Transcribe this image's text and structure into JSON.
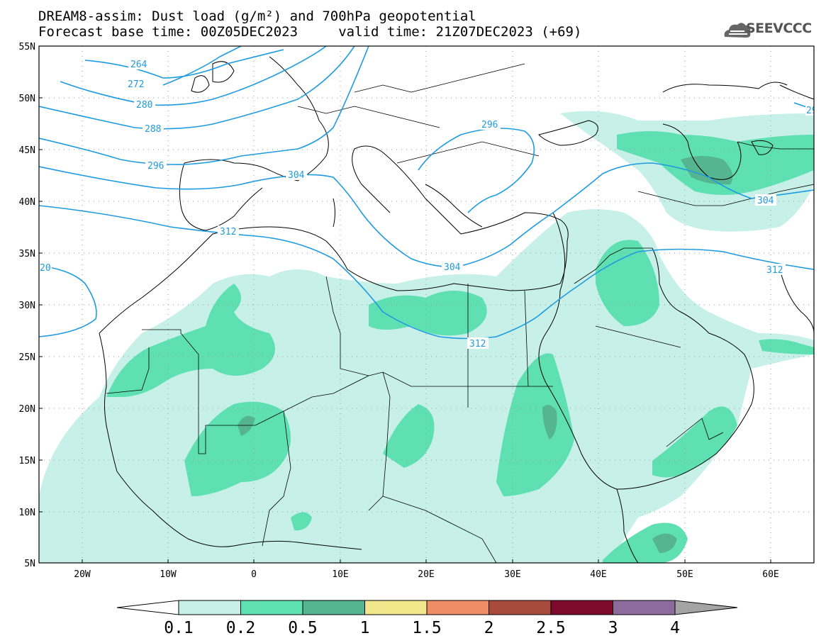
{
  "title": {
    "line1": "DREAM8-assim: Dust load (g/m²) and 700hPa geopotential",
    "line2": "Forecast base time: 00Z05DEC2023     valid time: 21Z07DEC2023 (+69)"
  },
  "logo": {
    "text": "SEEVCCC",
    "icon": "cloud-icon"
  },
  "map": {
    "lat_labels": [
      "55N",
      "50N",
      "45N",
      "40N",
      "35N",
      "30N",
      "25N",
      "20N",
      "15N",
      "10N",
      "5N"
    ],
    "lon_labels": [
      "20W",
      "10W",
      "0",
      "10E",
      "20E",
      "30E",
      "40E",
      "50E",
      "60E"
    ],
    "contour_labels": [
      "264",
      "272",
      "280",
      "288",
      "296",
      "304",
      "312",
      "296",
      "304",
      "304",
      "312",
      "312",
      "20",
      "29"
    ],
    "dust_colors": [
      "#c6f0e8",
      "#5ee0b2",
      "#55b591",
      "#f2e78a",
      "#ef8e66",
      "#a74b3e",
      "#7d0a2a",
      "#8e6b9d",
      "#a4a4a4"
    ]
  },
  "colorbar": {
    "labels": [
      "0.1",
      "0.2",
      "0.5",
      "1",
      "1.5",
      "2",
      "2.5",
      "3",
      "4"
    ],
    "colors": [
      "#c6f0e8",
      "#5ee0b2",
      "#55b591",
      "#f2e78a",
      "#ef8e66",
      "#a74b3e",
      "#7d0a2a",
      "#8e6b9d"
    ],
    "under_color": "#ffffff",
    "over_color": "#a4a4a4"
  }
}
